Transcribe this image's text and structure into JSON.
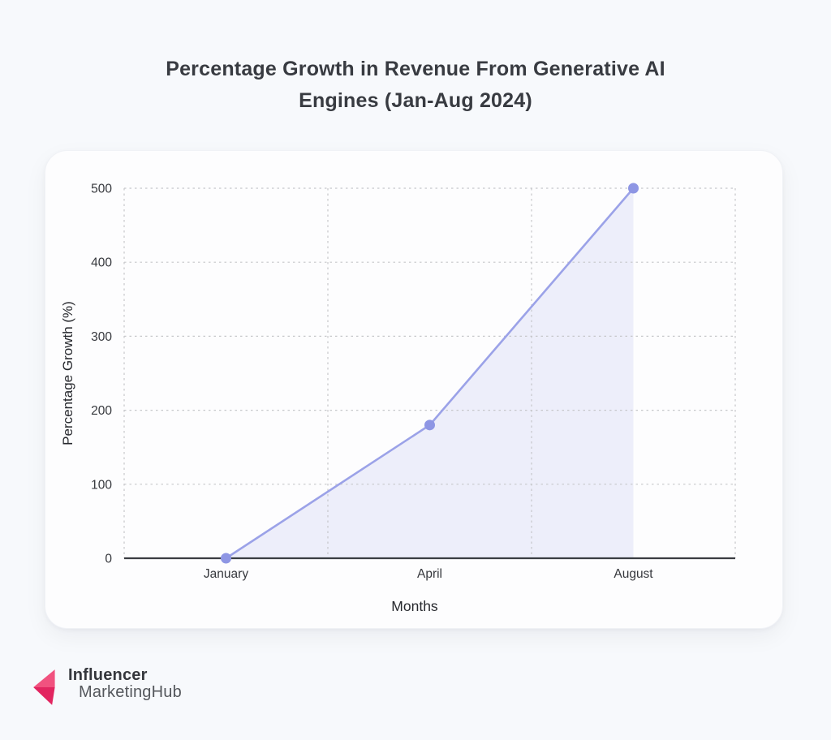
{
  "page": {
    "title_line1": "Percentage Growth in Revenue From Generative AI",
    "title_line2": "Engines (Jan-Aug 2024)"
  },
  "chart_data": {
    "type": "area",
    "categories": [
      "January",
      "April",
      "August"
    ],
    "series": [
      {
        "name": "Percentage Growth",
        "values": [
          0,
          180,
          500
        ]
      }
    ],
    "title": "Percentage Growth in Revenue From Generative AI Engines (Jan-Aug 2024)",
    "xlabel": "Months",
    "ylabel": "Percentage Growth (%)",
    "ylim": [
      0,
      500
    ],
    "yticks": [
      0,
      100,
      200,
      300,
      400,
      500
    ],
    "grid": true,
    "grid_style": "dashed",
    "legend": false,
    "colors": {
      "line": "#9ba2e8",
      "point": "#8e96e4",
      "fill": "#9aa1e8",
      "fill_opacity": 0.16,
      "axis": "#3a3d42",
      "grid": "#c6c7ca",
      "tick_label": "#36383d",
      "axis_title": "#26282d"
    }
  },
  "logo": {
    "line1": "Influencer",
    "line2": "MarketingHub",
    "icon": "influencer-marketinghub-arrow-icon",
    "icon_color_light": "#f1527f",
    "icon_color_dark": "#e22560"
  }
}
